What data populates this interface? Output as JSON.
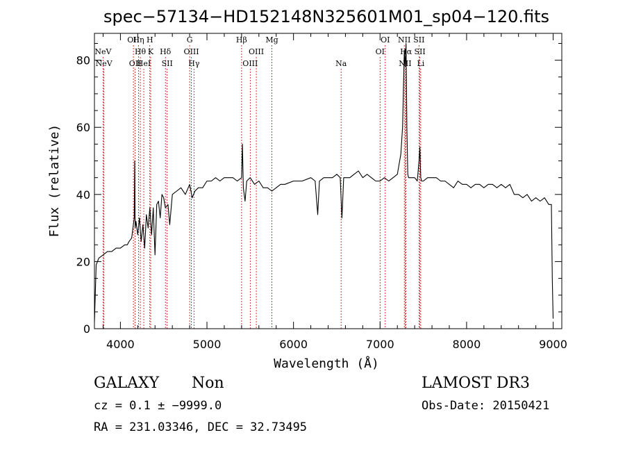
{
  "chart_data": {
    "type": "line",
    "title": "spec−57134−HD152148N325601M01_sp04−120.fits",
    "xlabel": "Wavelength (Å)",
    "ylabel": "Flux (relative)",
    "xlim": [
      3700,
      9100
    ],
    "ylim": [
      0,
      88
    ],
    "xticks": [
      4000,
      5000,
      6000,
      7000,
      8000,
      9000
    ],
    "yticks": [
      0,
      20,
      40,
      60,
      80
    ],
    "line_color": "#000000",
    "marker_color": "#cc0000",
    "series": [
      {
        "x": [
          3700,
          3720,
          3750,
          3800,
          3850,
          3900,
          3950,
          4000,
          4050,
          4080,
          4100,
          4130,
          4160,
          4165,
          4170,
          4180,
          4200,
          4220,
          4240,
          4260,
          4280,
          4300,
          4320,
          4340,
          4360,
          4380,
          4400,
          4420,
          4440,
          4460,
          4480,
          4500,
          4520,
          4550,
          4570,
          4600,
          4650,
          4700,
          4750,
          4800,
          4830,
          4861,
          4900,
          4950,
          5000,
          5050,
          5100,
          5150,
          5200,
          5250,
          5300,
          5350,
          5400,
          5410,
          5420,
          5440,
          5460,
          5500,
          5550,
          5600,
          5650,
          5700,
          5750,
          5800,
          5850,
          5900,
          6000,
          6100,
          6200,
          6250,
          6280,
          6300,
          6350,
          6400,
          6450,
          6500,
          6540,
          6560,
          6580,
          6600,
          6650,
          6700,
          6750,
          6800,
          6850,
          6900,
          6950,
          7000,
          7050,
          7100,
          7150,
          7200,
          7240,
          7260,
          7280,
          7290,
          7300,
          7310,
          7320,
          7330,
          7350,
          7400,
          7430,
          7450,
          7460,
          7470,
          7480,
          7500,
          7550,
          7600,
          7650,
          7700,
          7750,
          7800,
          7850,
          7900,
          7950,
          8000,
          8050,
          8100,
          8150,
          8200,
          8250,
          8300,
          8350,
          8400,
          8450,
          8500,
          8550,
          8600,
          8650,
          8700,
          8750,
          8800,
          8850,
          8900,
          8950,
          8980,
          8990,
          9000
        ],
        "y": [
          2,
          19,
          21,
          22,
          23,
          23,
          24,
          24,
          25,
          25,
          26,
          27,
          33,
          50,
          30,
          32,
          28,
          33,
          26,
          31,
          24,
          34,
          30,
          36,
          28,
          36,
          22,
          37,
          38,
          33,
          40,
          39,
          36,
          37,
          31,
          40,
          41,
          42,
          40,
          43,
          39,
          41,
          42,
          42,
          44,
          44,
          45,
          44,
          45,
          45,
          45,
          44,
          45,
          55,
          42,
          38,
          44,
          45,
          43,
          44,
          42,
          42,
          41,
          42,
          43,
          43,
          44,
          44,
          45,
          44,
          34,
          44,
          45,
          45,
          45,
          46,
          45,
          33,
          45,
          45,
          45,
          46,
          47,
          45,
          46,
          45,
          44,
          44,
          45,
          44,
          45,
          46,
          52,
          60,
          83,
          78,
          85,
          60,
          46,
          45,
          45,
          45,
          44,
          50,
          54,
          45,
          44,
          44,
          45,
          45,
          45,
          44,
          44,
          43,
          42,
          44,
          43,
          43,
          42,
          43,
          43,
          42,
          43,
          43,
          42,
          43,
          42,
          43,
          40,
          40,
          39,
          40,
          38,
          39,
          38,
          39,
          37,
          37,
          15,
          3
        ]
      }
    ],
    "lines": [
      {
        "label": "NeV",
        "row": 1,
        "x": 3800
      },
      {
        "label": "NeV",
        "row": 2,
        "x": 3810
      },
      {
        "label": "OII",
        "row": 0,
        "x": 4150
      },
      {
        "label": "OII",
        "row": 2,
        "x": 4170
      },
      {
        "label": "Hη",
        "row": 0,
        "x": 4210
      },
      {
        "label": "Hθ",
        "row": 1,
        "x": 4230
      },
      {
        "label": "HeI",
        "row": 2,
        "x": 4270
      },
      {
        "label": "H",
        "row": 0,
        "x": 4340
      },
      {
        "label": "K",
        "row": 1,
        "x": 4350
      },
      {
        "label": "Hδ",
        "row": 1,
        "x": 4520
      },
      {
        "label": "SII",
        "row": 2,
        "x": 4540
      },
      {
        "label": "G",
        "row": 0,
        "x": 4800
      },
      {
        "label": "OIII",
        "row": 1,
        "x": 4820
      },
      {
        "label": "Hγ",
        "row": 2,
        "x": 4850
      },
      {
        "label": "Hβ",
        "row": 0,
        "x": 5400
      },
      {
        "label": "OIII",
        "row": 2,
        "x": 5500
      },
      {
        "label": "OIII",
        "row": 1,
        "x": 5570
      },
      {
        "label": "Mg",
        "row": 0,
        "x": 5750
      },
      {
        "label": "Na",
        "row": 2,
        "x": 6550
      },
      {
        "label": "OI",
        "row": 0,
        "x": 7060
      },
      {
        "label": "OI",
        "row": 1,
        "x": 7000
      },
      {
        "label": "NII",
        "row": 0,
        "x": 7280
      },
      {
        "label": "Hα",
        "row": 1,
        "x": 7300
      },
      {
        "label": "NII",
        "row": 2,
        "x": 7290
      },
      {
        "label": "SII",
        "row": 0,
        "x": 7450
      },
      {
        "label": "SII",
        "row": 1,
        "x": 7460
      },
      {
        "label": "Li",
        "row": 2,
        "x": 7470
      }
    ]
  },
  "info": {
    "object_class": "GALAXY",
    "subclass": "Non",
    "survey": "LAMOST DR3",
    "cz_line": "cz = 0.1 ± −9999.0",
    "obs_date": "Obs-Date: 20150421",
    "radec": "RA = 231.03346, DEC =  32.73495"
  }
}
